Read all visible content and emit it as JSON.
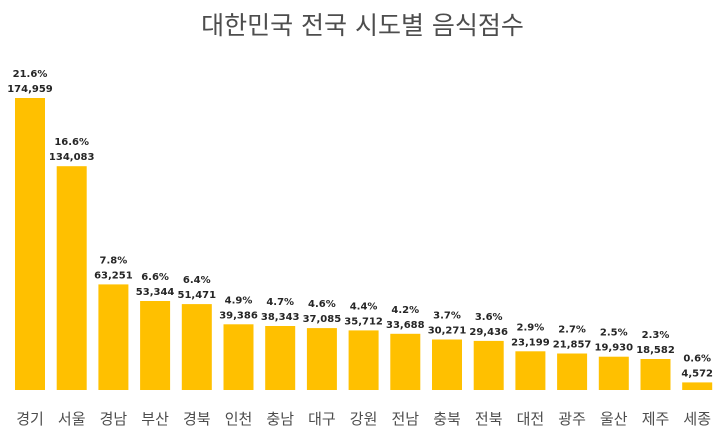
{
  "chart_data": {
    "type": "bar",
    "title": "대한민국 전국 시도별 음식점수",
    "categories": [
      "경기",
      "서울",
      "경남",
      "부산",
      "경북",
      "인천",
      "충남",
      "대구",
      "강원",
      "전남",
      "충북",
      "전북",
      "대전",
      "광주",
      "울산",
      "제주",
      "세종"
    ],
    "values": [
      174959,
      134083,
      63251,
      53344,
      51471,
      39386,
      38343,
      37085,
      35712,
      33688,
      30271,
      29436,
      23199,
      21857,
      19930,
      18582,
      4572
    ],
    "value_labels": [
      "174,959",
      "134,083",
      "63,251",
      "53,344",
      "51,471",
      "39,386",
      "38,343",
      "37,085",
      "35,712",
      "33,688",
      "30,271",
      "29,436",
      "23,199",
      "21,857",
      "19,930",
      "18,582",
      "4,572"
    ],
    "percent_labels": [
      "21.6%",
      "16.6%",
      "7.8%",
      "6.6%",
      "6.4%",
      "4.9%",
      "4.7%",
      "4.6%",
      "4.4%",
      "4.2%",
      "3.7%",
      "3.6%",
      "2.9%",
      "2.7%",
      "2.5%",
      "2.3%",
      "0.6%"
    ],
    "bar_color": "#FFC000",
    "grid": false,
    "legend": "none"
  }
}
